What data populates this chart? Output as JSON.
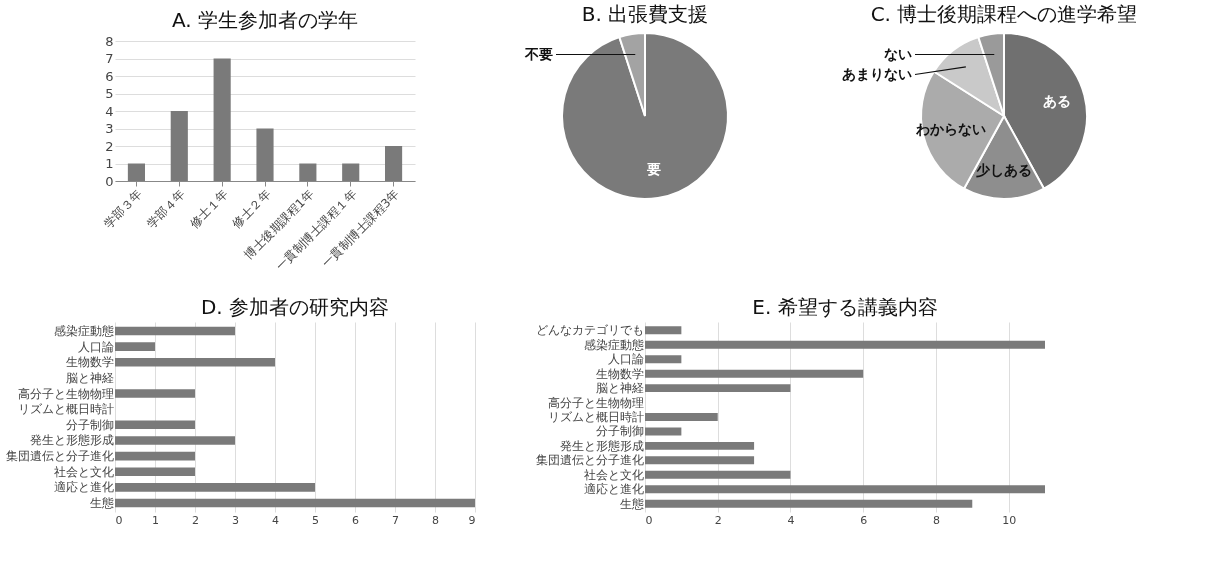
{
  "chart_data": [
    {
      "type": "bar",
      "title": "A. 学生参加者の学年",
      "categories": [
        "学部３年",
        "学部４年",
        "修士１年",
        "修士２年",
        "博士後期課程1年",
        "一貫制博士課程１年",
        "一貫制博士課程3年"
      ],
      "values": [
        1,
        4,
        7,
        3,
        1,
        1,
        2
      ],
      "color": "#7a7a7a",
      "ylim": [
        0,
        8
      ],
      "yticks": [
        0,
        1,
        2,
        3,
        4,
        5,
        6,
        7,
        8
      ],
      "grid": "y"
    },
    {
      "type": "pie",
      "title": "B. 出張費支援",
      "categories": [
        "要",
        "不要"
      ],
      "values": [
        95,
        5
      ],
      "colors": [
        "#7a7a7a",
        "#a3a3a3"
      ]
    },
    {
      "type": "pie",
      "title": "C. 博士後期課程への進学希望",
      "categories": [
        "ある",
        "少しある",
        "わからない",
        "あまりない",
        "ない"
      ],
      "values": [
        42,
        16,
        26,
        11,
        5
      ],
      "colors": [
        "#707070",
        "#8e8e8e",
        "#ababab",
        "#c9c9c9",
        "#9a9a9a"
      ]
    },
    {
      "type": "bar",
      "orientation": "horizontal",
      "title": "D. 参加者の研究内容",
      "categories": [
        "感染症動態",
        "人口論",
        "生物数学",
        "脳と神経",
        "高分子と生物物理",
        "リズムと概日時計",
        "分子制御",
        "発生と形態形成",
        "集団遺伝と分子進化",
        "社会と文化",
        "適応と進化",
        "生態"
      ],
      "values": [
        3,
        1,
        4,
        0,
        2,
        0,
        2,
        3,
        2,
        2,
        5,
        9
      ],
      "color": "#7a7a7a",
      "xlim": [
        0,
        9
      ],
      "xticks": [
        0,
        1,
        2,
        3,
        4,
        5,
        6,
        7,
        8,
        9
      ],
      "grid": "x"
    },
    {
      "type": "bar",
      "orientation": "horizontal",
      "title": "E. 希望する講義内容",
      "categories": [
        "どんなカテゴリでも",
        "感染症動態",
        "人口論",
        "生物数学",
        "脳と神経",
        "高分子と生物物理",
        "リズムと概日時計",
        "分子制御",
        "発生と形態形成",
        "集団遺伝と分子進化",
        "社会と文化",
        "適応と進化",
        "生態"
      ],
      "values": [
        1,
        11,
        1,
        6,
        4,
        0,
        2,
        1,
        3,
        3,
        4,
        11,
        9
      ],
      "color": "#7a7a7a",
      "xlim": [
        0,
        11
      ],
      "xticks": [
        0,
        2,
        4,
        6,
        8,
        10
      ],
      "grid": "x"
    }
  ]
}
